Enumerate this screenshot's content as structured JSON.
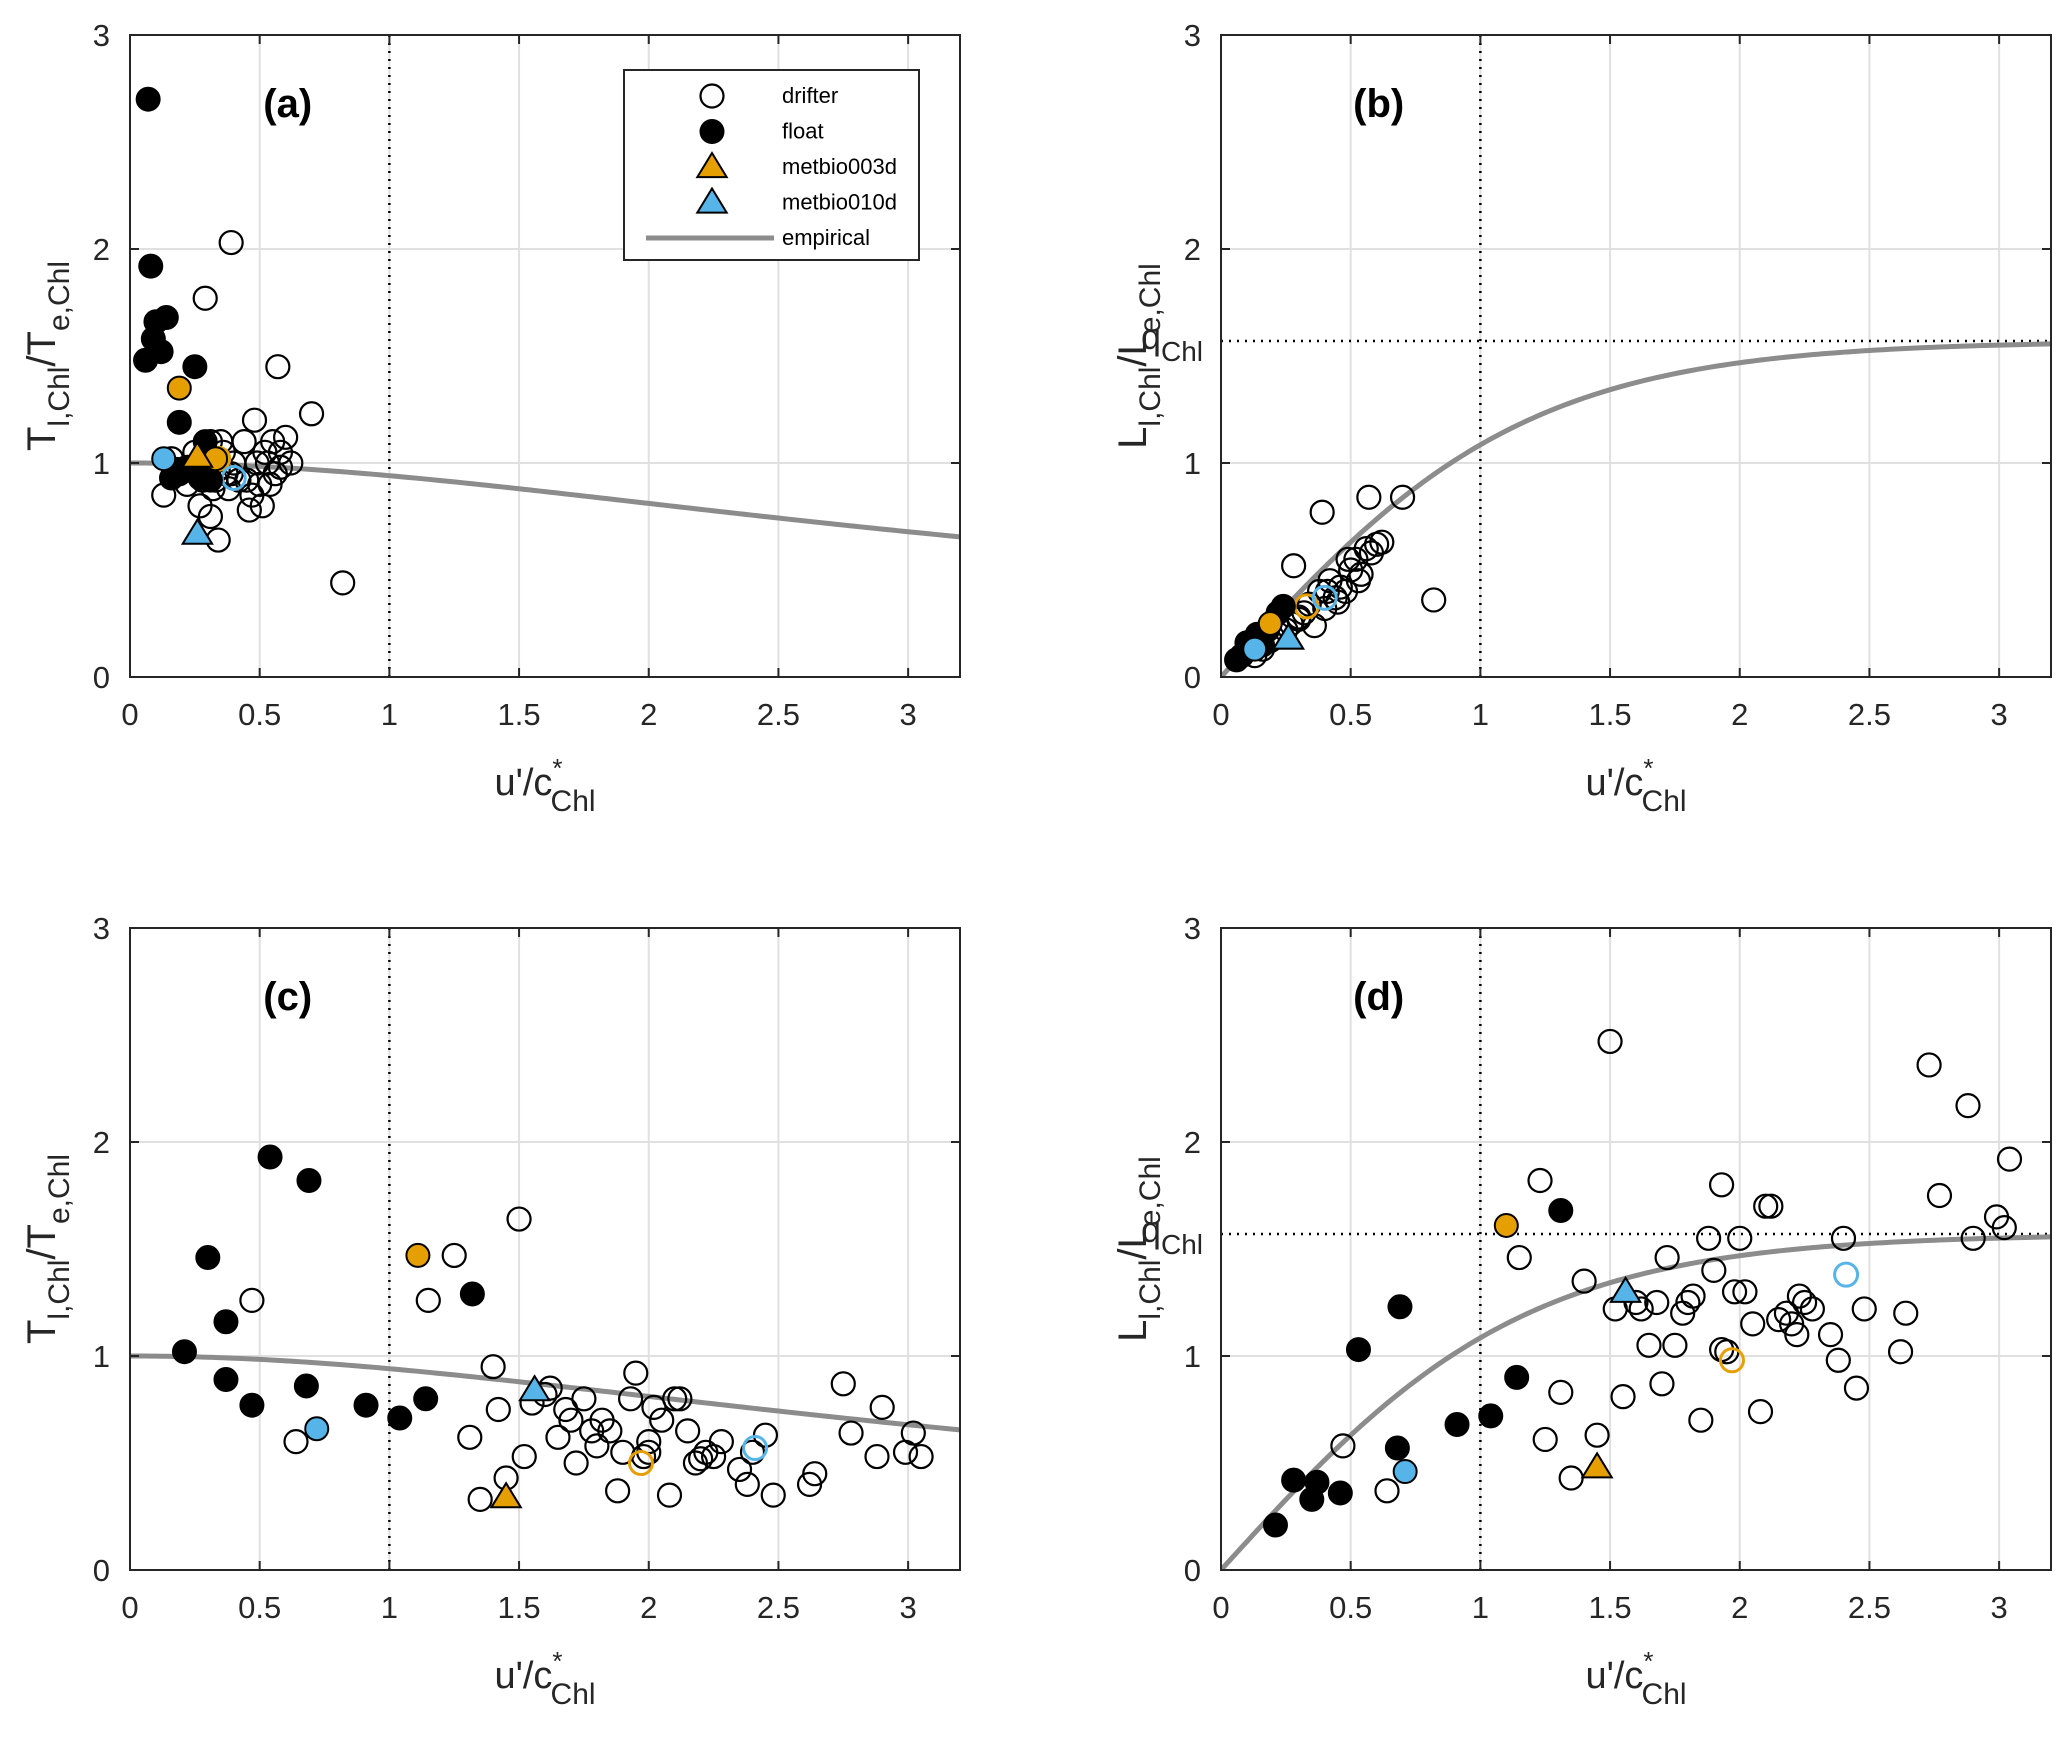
{
  "chart_data": [
    {
      "id": "a",
      "type": "scatter",
      "panel_label": "(a)",
      "ylabel_main": "T",
      "ylabel_sub1": "l,Chl",
      "ylabel_mid": "/T",
      "ylabel_sub2": "e,Chl",
      "xlabel_main": "u'/c",
      "xlabel_sup": "*",
      "xlabel_sub": "Chl",
      "xlim": [
        0,
        3.2
      ],
      "ylim": [
        0,
        3
      ],
      "xticks": [
        "0",
        "0.5",
        "1",
        "1.5",
        "2",
        "2.5",
        "3"
      ],
      "yticks": [
        "0",
        "1",
        "2",
        "3"
      ],
      "grid": true,
      "vline_x": 1,
      "legend": {
        "placement": "top-right",
        "entries": [
          "drifter",
          "float",
          "metbio003d",
          "metbio010d",
          "empirical"
        ]
      },
      "series": [
        {
          "name": "drifter",
          "marker": "open-circle",
          "color": "#000000",
          "x": [
            0.13,
            0.16,
            0.19,
            0.22,
            0.25,
            0.27,
            0.28,
            0.29,
            0.3,
            0.31,
            0.32,
            0.33,
            0.34,
            0.35,
            0.36,
            0.37,
            0.38,
            0.39,
            0.4,
            0.42,
            0.44,
            0.46,
            0.47,
            0.48,
            0.49,
            0.5,
            0.51,
            0.52,
            0.53,
            0.54,
            0.55,
            0.56,
            0.57,
            0.58,
            0.6,
            0.62,
            0.7,
            0.82,
            0.39,
            0.31,
            0.58,
            0.3,
            0.34,
            0.32,
            0.45
          ],
          "y": [
            0.85,
            1.02,
            0.95,
            0.9,
            1.05,
            0.8,
            0.92,
            1.77,
            0.96,
            0.75,
            1.0,
            0.92,
            0.64,
            1.1,
            1.05,
            0.95,
            0.88,
            2.03,
            1.0,
            0.92,
            1.1,
            0.78,
            0.85,
            1.2,
            1.0,
            0.9,
            0.8,
            1.05,
            1.0,
            0.9,
            1.1,
            0.95,
            1.45,
            1.05,
            1.12,
            1.0,
            1.23,
            0.44,
            0.95,
            1.1,
            0.98,
            1.02,
            0.97,
            0.88,
            0.92
          ]
        },
        {
          "name": "float",
          "marker": "filled-circle",
          "color": "#000000",
          "x": [
            0.06,
            0.07,
            0.08,
            0.09,
            0.1,
            0.12,
            0.14,
            0.16,
            0.18,
            0.19,
            0.2,
            0.22,
            0.25,
            0.27,
            0.29,
            0.31
          ],
          "y": [
            1.48,
            2.7,
            1.92,
            1.58,
            1.66,
            1.52,
            1.68,
            0.93,
            0.97,
            1.19,
            0.96,
            0.98,
            1.45,
            0.93,
            1.1,
            0.92
          ]
        },
        {
          "name": "metbio003d",
          "marker": "filled-circle",
          "color": "#E69F00",
          "x": [
            0.19,
            0.33
          ],
          "y": [
            1.35,
            1.02
          ]
        },
        {
          "name": "metbio003d-open",
          "marker": "open-circle",
          "color": "#E69F00",
          "x": [
            0.34
          ],
          "y": [
            1.02
          ]
        },
        {
          "name": "metbio003d-tri",
          "marker": "filled-triangle",
          "color": "#E69F00",
          "x": [
            0.26
          ],
          "y": [
            1.03
          ]
        },
        {
          "name": "metbio010d",
          "marker": "filled-circle",
          "color": "#56B4E9",
          "x": [
            0.13
          ],
          "y": [
            1.02
          ]
        },
        {
          "name": "metbio010d-open",
          "marker": "open-circle",
          "color": "#56B4E9",
          "x": [
            0.4
          ],
          "y": [
            0.93
          ]
        },
        {
          "name": "metbio010d-tri",
          "marker": "filled-triangle",
          "color": "#56B4E9",
          "x": [
            0.26
          ],
          "y": [
            0.67
          ]
        }
      ],
      "curve": {
        "name": "empirical",
        "kind": "T",
        "color": "#8c8c8c"
      }
    },
    {
      "id": "b",
      "type": "scatter",
      "panel_label": "(b)",
      "ylabel_main": "L",
      "ylabel_sub1": "l,Chl",
      "ylabel_mid": "/L",
      "ylabel_sub2": "e,Chl",
      "xlabel_main": "u'/c",
      "xlabel_sup": "*",
      "xlabel_sub": "Chl",
      "xlim": [
        0,
        3.2
      ],
      "ylim": [
        0,
        3
      ],
      "xticks": [
        "0",
        "0.5",
        "1",
        "1.5",
        "2",
        "2.5",
        "3"
      ],
      "yticks": [
        "0",
        "1",
        "2",
        "3"
      ],
      "grid": true,
      "vline_x": 1,
      "hline_y": 1.57,
      "hline_label_main": "q",
      "hline_label_sub": "Chl",
      "series": [
        {
          "name": "drifter",
          "marker": "open-circle",
          "color": "#000000",
          "x": [
            0.13,
            0.16,
            0.19,
            0.22,
            0.25,
            0.27,
            0.28,
            0.3,
            0.32,
            0.34,
            0.36,
            0.38,
            0.4,
            0.42,
            0.44,
            0.46,
            0.48,
            0.5,
            0.52,
            0.54,
            0.56,
            0.58,
            0.6,
            0.62,
            0.7,
            0.82,
            0.3,
            0.39,
            0.57,
            0.49,
            0.53,
            0.45,
            0.41
          ],
          "y": [
            0.1,
            0.13,
            0.17,
            0.2,
            0.22,
            0.25,
            0.52,
            0.27,
            0.3,
            0.34,
            0.24,
            0.4,
            0.32,
            0.45,
            0.37,
            0.42,
            0.4,
            0.5,
            0.55,
            0.48,
            0.6,
            0.58,
            0.62,
            0.63,
            0.84,
            0.36,
            0.28,
            0.77,
            0.84,
            0.55,
            0.45,
            0.35,
            0.4
          ]
        },
        {
          "name": "float",
          "marker": "filled-circle",
          "color": "#000000",
          "x": [
            0.06,
            0.08,
            0.1,
            0.12,
            0.14,
            0.16,
            0.18,
            0.22,
            0.24
          ],
          "y": [
            0.08,
            0.1,
            0.16,
            0.13,
            0.2,
            0.15,
            0.22,
            0.3,
            0.33
          ]
        },
        {
          "name": "metbio003d",
          "marker": "filled-circle",
          "color": "#E69F00",
          "x": [
            0.19
          ],
          "y": [
            0.25
          ]
        },
        {
          "name": "metbio003d-open",
          "marker": "open-circle",
          "color": "#E69F00",
          "x": [
            0.33
          ],
          "y": [
            0.33
          ]
        },
        {
          "name": "metbio003d-tri",
          "marker": "filled-triangle",
          "color": "#E69F00",
          "x": [
            0.26
          ],
          "y": [
            0.18
          ]
        },
        {
          "name": "metbio010d",
          "marker": "filled-circle",
          "color": "#56B4E9",
          "x": [
            0.13
          ],
          "y": [
            0.13
          ]
        },
        {
          "name": "metbio010d-open",
          "marker": "open-circle",
          "color": "#56B4E9",
          "x": [
            0.4
          ],
          "y": [
            0.37
          ]
        },
        {
          "name": "metbio010d-tri",
          "marker": "filled-triangle",
          "color": "#56B4E9",
          "x": [
            0.26
          ],
          "y": [
            0.18
          ]
        }
      ],
      "curve": {
        "name": "empirical",
        "kind": "L",
        "color": "#8c8c8c"
      }
    },
    {
      "id": "c",
      "type": "scatter",
      "panel_label": "(c)",
      "ylabel_main": "T",
      "ylabel_sub1": "l,Chl",
      "ylabel_mid": "/T",
      "ylabel_sub2": "e,Chl",
      "xlabel_main": "u'/c",
      "xlabel_sup": "*",
      "xlabel_sub": "Chl",
      "xlim": [
        0,
        3.2
      ],
      "ylim": [
        0,
        3
      ],
      "xticks": [
        "0",
        "0.5",
        "1",
        "1.5",
        "2",
        "2.5",
        "3"
      ],
      "yticks": [
        "0",
        "1",
        "2",
        "3"
      ],
      "grid": true,
      "vline_x": 1,
      "series": [
        {
          "name": "drifter",
          "marker": "open-circle",
          "color": "#000000",
          "x": [
            0.47,
            0.64,
            1.15,
            1.25,
            1.35,
            1.4,
            1.45,
            1.5,
            1.52,
            1.55,
            1.6,
            1.65,
            1.68,
            1.7,
            1.72,
            1.75,
            1.78,
            1.8,
            1.82,
            1.85,
            1.88,
            1.9,
            1.93,
            1.95,
            1.98,
            2.0,
            2.02,
            2.05,
            2.08,
            2.1,
            2.12,
            2.15,
            2.18,
            2.2,
            2.22,
            2.25,
            2.28,
            2.35,
            2.38,
            2.4,
            2.45,
            2.48,
            2.62,
            2.64,
            2.75,
            2.78,
            2.88,
            2.9,
            2.99,
            3.02,
            3.05,
            1.31,
            1.42,
            1.62,
            2.0
          ],
          "y": [
            1.26,
            0.6,
            1.26,
            1.47,
            0.33,
            0.95,
            0.43,
            1.64,
            0.53,
            0.78,
            0.82,
            0.62,
            0.75,
            0.7,
            0.5,
            0.8,
            0.65,
            0.58,
            0.7,
            0.65,
            0.37,
            0.55,
            0.8,
            0.92,
            0.53,
            0.6,
            0.76,
            0.7,
            0.35,
            0.8,
            0.8,
            0.65,
            0.5,
            0.52,
            0.55,
            0.53,
            0.6,
            0.47,
            0.4,
            0.55,
            0.63,
            0.35,
            0.4,
            0.45,
            0.87,
            0.64,
            0.53,
            0.76,
            0.55,
            0.64,
            0.53,
            0.62,
            0.75,
            0.85,
            0.55
          ]
        },
        {
          "name": "float",
          "marker": "filled-circle",
          "color": "#000000",
          "x": [
            0.21,
            0.3,
            0.37,
            0.37,
            0.47,
            0.54,
            0.68,
            0.69,
            0.91,
            1.04,
            1.14,
            1.32
          ],
          "y": [
            1.02,
            1.46,
            1.16,
            0.89,
            0.77,
            1.93,
            0.86,
            1.82,
            0.77,
            0.71,
            0.8,
            1.29
          ]
        },
        {
          "name": "metbio003d",
          "marker": "filled-circle",
          "color": "#E69F00",
          "x": [
            1.11
          ],
          "y": [
            1.47
          ]
        },
        {
          "name": "metbio003d-open",
          "marker": "open-circle",
          "color": "#E69F00",
          "x": [
            1.97
          ],
          "y": [
            0.5
          ]
        },
        {
          "name": "metbio003d-tri",
          "marker": "filled-triangle",
          "color": "#E69F00",
          "x": [
            1.45
          ],
          "y": [
            0.34
          ]
        },
        {
          "name": "metbio010d",
          "marker": "filled-circle",
          "color": "#56B4E9",
          "x": [
            0.72
          ],
          "y": [
            0.66
          ]
        },
        {
          "name": "metbio010d-open",
          "marker": "open-circle",
          "color": "#56B4E9",
          "x": [
            2.41
          ],
          "y": [
            0.57
          ]
        },
        {
          "name": "metbio010d-tri",
          "marker": "filled-triangle",
          "color": "#56B4E9",
          "x": [
            1.56
          ],
          "y": [
            0.84
          ]
        }
      ],
      "curve": {
        "name": "empirical",
        "kind": "T",
        "color": "#8c8c8c"
      }
    },
    {
      "id": "d",
      "type": "scatter",
      "panel_label": "(d)",
      "ylabel_main": "L",
      "ylabel_sub1": "l,Chl",
      "ylabel_mid": "/L",
      "ylabel_sub2": "e,Chl",
      "xlabel_main": "u'/c",
      "xlabel_sup": "*",
      "xlabel_sub": "Chl",
      "xlim": [
        0,
        3.2
      ],
      "ylim": [
        0,
        3
      ],
      "xticks": [
        "0",
        "0.5",
        "1",
        "1.5",
        "2",
        "2.5",
        "3"
      ],
      "yticks": [
        "0",
        "1",
        "2",
        "3"
      ],
      "grid": true,
      "vline_x": 1,
      "hline_y": 1.57,
      "hline_label_main": "q",
      "hline_label_sub": "Chl",
      "series": [
        {
          "name": "drifter",
          "marker": "open-circle",
          "color": "#000000",
          "x": [
            0.47,
            0.64,
            1.15,
            1.25,
            1.23,
            1.35,
            1.4,
            1.45,
            1.5,
            1.52,
            1.55,
            1.6,
            1.65,
            1.68,
            1.7,
            1.72,
            1.75,
            1.78,
            1.8,
            1.82,
            1.85,
            1.88,
            1.9,
            1.93,
            1.95,
            1.98,
            2.0,
            2.02,
            2.05,
            2.08,
            2.1,
            2.12,
            2.15,
            2.18,
            2.2,
            2.22,
            2.25,
            2.28,
            2.35,
            2.38,
            2.4,
            2.45,
            2.48,
            2.62,
            2.64,
            2.73,
            2.77,
            2.88,
            2.9,
            2.99,
            3.02,
            3.04,
            1.31,
            1.62,
            1.93,
            2.23
          ],
          "y": [
            0.58,
            0.37,
            1.46,
            0.61,
            1.82,
            0.43,
            1.35,
            0.63,
            2.47,
            1.22,
            0.81,
            1.25,
            1.05,
            1.25,
            0.87,
            1.46,
            1.05,
            1.2,
            1.25,
            1.28,
            0.7,
            1.55,
            1.4,
            1.8,
            1.02,
            1.3,
            1.55,
            1.3,
            1.15,
            0.74,
            1.7,
            1.7,
            1.17,
            1.2,
            1.15,
            1.1,
            1.25,
            1.22,
            1.1,
            0.98,
            1.55,
            0.85,
            1.22,
            1.02,
            1.2,
            2.36,
            1.75,
            2.17,
            1.55,
            1.65,
            1.6,
            1.92,
            0.83,
            1.22,
            1.03,
            1.28
          ]
        },
        {
          "name": "float",
          "marker": "filled-circle",
          "color": "#000000",
          "x": [
            0.21,
            0.28,
            0.35,
            0.37,
            0.46,
            0.53,
            0.68,
            0.69,
            0.91,
            1.04,
            1.14,
            1.31
          ],
          "y": [
            0.21,
            0.42,
            0.33,
            0.41,
            0.36,
            1.03,
            0.57,
            1.23,
            0.68,
            0.72,
            0.9,
            1.68
          ]
        },
        {
          "name": "metbio003d",
          "marker": "filled-circle",
          "color": "#E69F00",
          "x": [
            1.1
          ],
          "y": [
            1.61
          ]
        },
        {
          "name": "metbio003d-open",
          "marker": "open-circle",
          "color": "#E69F00",
          "x": [
            1.97
          ],
          "y": [
            0.98
          ]
        },
        {
          "name": "metbio003d-tri",
          "marker": "filled-triangle",
          "color": "#E69F00",
          "x": [
            1.45
          ],
          "y": [
            0.48
          ]
        },
        {
          "name": "metbio010d",
          "marker": "filled-circle",
          "color": "#56B4E9",
          "x": [
            0.71
          ],
          "y": [
            0.46
          ]
        },
        {
          "name": "metbio010d-open",
          "marker": "open-circle",
          "color": "#56B4E9",
          "x": [
            2.41
          ],
          "y": [
            1.38
          ]
        },
        {
          "name": "metbio010d-tri",
          "marker": "filled-triangle",
          "color": "#56B4E9",
          "x": [
            1.56
          ],
          "y": [
            1.3
          ]
        }
      ],
      "curve": {
        "name": "empirical",
        "kind": "L",
        "color": "#8c8c8c"
      }
    }
  ]
}
